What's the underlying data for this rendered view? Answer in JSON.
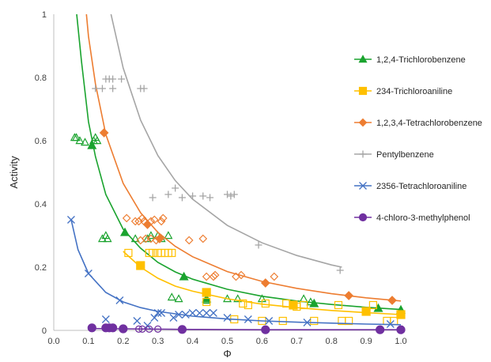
{
  "chart_data": {
    "type": "scatter",
    "title": "",
    "xlabel": "Φ",
    "ylabel": "Activity",
    "xlim": [
      0,
      1
    ],
    "ylim": [
      0,
      1
    ],
    "xticks": [
      "0.0",
      "0.1",
      "0.2",
      "0.3",
      "0.4",
      "0.5",
      "0.6",
      "0.7",
      "0.8",
      "0.9",
      "1.0"
    ],
    "yticks": [
      "0",
      "0.2",
      "0.4",
      "0.6",
      "0.8",
      "1"
    ],
    "grid": false,
    "legend_position": "right",
    "series": [
      {
        "name": "1,2,4-Trichlorobenzene",
        "color": "#1aa32e",
        "marker": "triangle",
        "filled_points": [
          [
            0.11,
            0.585
          ],
          [
            0.205,
            0.31
          ],
          [
            0.375,
            0.17
          ],
          [
            0.44,
            0.1
          ],
          [
            0.75,
            0.085
          ],
          [
            0.935,
            0.07
          ],
          [
            1.0,
            0.065
          ]
        ],
        "open_points": [
          [
            0.06,
            0.61
          ],
          [
            0.065,
            0.61
          ],
          [
            0.075,
            0.6
          ],
          [
            0.09,
            0.595
          ],
          [
            0.115,
            0.6
          ],
          [
            0.12,
            0.61
          ],
          [
            0.125,
            0.6
          ],
          [
            0.14,
            0.29
          ],
          [
            0.15,
            0.3
          ],
          [
            0.155,
            0.29
          ],
          [
            0.235,
            0.29
          ],
          [
            0.27,
            0.29
          ],
          [
            0.28,
            0.3
          ],
          [
            0.3,
            0.3
          ],
          [
            0.31,
            0.29
          ],
          [
            0.33,
            0.3
          ],
          [
            0.34,
            0.105
          ],
          [
            0.36,
            0.1
          ],
          [
            0.44,
            0.095
          ],
          [
            0.5,
            0.1
          ],
          [
            0.53,
            0.1
          ],
          [
            0.6,
            0.1
          ],
          [
            0.72,
            0.1
          ],
          [
            0.74,
            0.09
          ]
        ],
        "curve": [
          [
            0.066,
            1.0
          ],
          [
            0.08,
            0.85
          ],
          [
            0.1,
            0.66
          ],
          [
            0.12,
            0.55
          ],
          [
            0.15,
            0.43
          ],
          [
            0.2,
            0.32
          ],
          [
            0.25,
            0.26
          ],
          [
            0.3,
            0.215
          ],
          [
            0.35,
            0.185
          ],
          [
            0.4,
            0.162
          ],
          [
            0.5,
            0.13
          ],
          [
            0.6,
            0.108
          ],
          [
            0.7,
            0.093
          ],
          [
            0.8,
            0.082
          ],
          [
            0.9,
            0.073
          ],
          [
            1.0,
            0.066
          ]
        ]
      },
      {
        "name": "234-Trichloroaniline",
        "color": "#ffc000",
        "marker": "square",
        "filled_points": [
          [
            0.25,
            0.205
          ],
          [
            0.44,
            0.12
          ],
          [
            0.69,
            0.08
          ],
          [
            0.9,
            0.06
          ],
          [
            1.0,
            0.05
          ]
        ],
        "open_points": [
          [
            0.215,
            0.245
          ],
          [
            0.275,
            0.245
          ],
          [
            0.285,
            0.245
          ],
          [
            0.3,
            0.245
          ],
          [
            0.31,
            0.245
          ],
          [
            0.32,
            0.245
          ],
          [
            0.33,
            0.245
          ],
          [
            0.34,
            0.245
          ],
          [
            0.44,
            0.09
          ],
          [
            0.545,
            0.085
          ],
          [
            0.56,
            0.08
          ],
          [
            0.61,
            0.085
          ],
          [
            0.67,
            0.085
          ],
          [
            0.7,
            0.075
          ],
          [
            0.72,
            0.08
          ],
          [
            0.82,
            0.08
          ],
          [
            0.92,
            0.08
          ],
          [
            0.52,
            0.035
          ],
          [
            0.6,
            0.03
          ],
          [
            0.66,
            0.03
          ],
          [
            0.75,
            0.03
          ],
          [
            0.83,
            0.03
          ],
          [
            0.85,
            0.03
          ],
          [
            0.96,
            0.03
          ],
          [
            0.98,
            0.03
          ]
        ],
        "curve": [
          [
            0.2,
            0.25
          ],
          [
            0.25,
            0.2
          ],
          [
            0.3,
            0.165
          ],
          [
            0.35,
            0.14
          ],
          [
            0.4,
            0.124
          ],
          [
            0.5,
            0.1
          ],
          [
            0.6,
            0.083
          ],
          [
            0.7,
            0.072
          ],
          [
            0.8,
            0.063
          ],
          [
            0.9,
            0.056
          ],
          [
            1.0,
            0.05
          ]
        ]
      },
      {
        "name": "1,2,3,4-Tetrachlorobenzene",
        "color": "#ed7d31",
        "marker": "diamond",
        "filled_points": [
          [
            0.145,
            0.625
          ],
          [
            0.27,
            0.335
          ],
          [
            0.305,
            0.29
          ],
          [
            0.61,
            0.15
          ],
          [
            0.85,
            0.11
          ],
          [
            0.975,
            0.095
          ]
        ],
        "open_points": [
          [
            0.21,
            0.355
          ],
          [
            0.235,
            0.345
          ],
          [
            0.245,
            0.345
          ],
          [
            0.255,
            0.355
          ],
          [
            0.26,
            0.345
          ],
          [
            0.28,
            0.345
          ],
          [
            0.29,
            0.35
          ],
          [
            0.31,
            0.345
          ],
          [
            0.315,
            0.355
          ],
          [
            0.25,
            0.285
          ],
          [
            0.265,
            0.29
          ],
          [
            0.28,
            0.29
          ],
          [
            0.295,
            0.285
          ],
          [
            0.39,
            0.285
          ],
          [
            0.43,
            0.29
          ],
          [
            0.44,
            0.17
          ],
          [
            0.46,
            0.17
          ],
          [
            0.465,
            0.175
          ],
          [
            0.525,
            0.17
          ],
          [
            0.54,
            0.175
          ],
          [
            0.635,
            0.17
          ]
        ],
        "curve": [
          [
            0.094,
            1.0
          ],
          [
            0.1,
            0.93
          ],
          [
            0.12,
            0.78
          ],
          [
            0.15,
            0.62
          ],
          [
            0.2,
            0.465
          ],
          [
            0.25,
            0.372
          ],
          [
            0.3,
            0.31
          ],
          [
            0.35,
            0.266
          ],
          [
            0.4,
            0.233
          ],
          [
            0.5,
            0.186
          ],
          [
            0.6,
            0.155
          ],
          [
            0.7,
            0.133
          ],
          [
            0.8,
            0.116
          ],
          [
            0.9,
            0.103
          ],
          [
            1.0,
            0.093
          ]
        ]
      },
      {
        "name": "Pentylbenzene",
        "color": "#a5a5a5",
        "marker": "plus",
        "filled_points": [],
        "open_points": [
          [
            0.12,
            0.765
          ],
          [
            0.14,
            0.765
          ],
          [
            0.17,
            0.765
          ],
          [
            0.15,
            0.795
          ],
          [
            0.16,
            0.795
          ],
          [
            0.17,
            0.795
          ],
          [
            0.195,
            0.795
          ],
          [
            0.25,
            0.765
          ],
          [
            0.26,
            0.765
          ],
          [
            0.285,
            0.42
          ],
          [
            0.33,
            0.43
          ],
          [
            0.35,
            0.45
          ],
          [
            0.37,
            0.42
          ],
          [
            0.4,
            0.425
          ],
          [
            0.43,
            0.425
          ],
          [
            0.45,
            0.42
          ],
          [
            0.5,
            0.43
          ],
          [
            0.51,
            0.425
          ],
          [
            0.52,
            0.43
          ],
          [
            0.59,
            0.27
          ],
          [
            0.825,
            0.19
          ]
        ],
        "curve": [
          [
            0.165,
            1.0
          ],
          [
            0.2,
            0.83
          ],
          [
            0.25,
            0.665
          ],
          [
            0.3,
            0.553
          ],
          [
            0.35,
            0.474
          ],
          [
            0.4,
            0.415
          ],
          [
            0.5,
            0.332
          ],
          [
            0.6,
            0.277
          ],
          [
            0.7,
            0.237
          ],
          [
            0.8,
            0.207
          ],
          [
            0.83,
            0.2
          ]
        ]
      },
      {
        "name": "2356-Tetrachloroaniline",
        "color": "#4472c4",
        "marker": "x",
        "filled_points": [],
        "open_points": [
          [
            0.05,
            0.35
          ],
          [
            0.1,
            0.18
          ],
          [
            0.19,
            0.095
          ],
          [
            0.15,
            0.035
          ],
          [
            0.24,
            0.03
          ],
          [
            0.27,
            0.015
          ],
          [
            0.29,
            0.04
          ],
          [
            0.3,
            0.055
          ],
          [
            0.31,
            0.055
          ],
          [
            0.345,
            0.04
          ],
          [
            0.36,
            0.05
          ],
          [
            0.38,
            0.05
          ],
          [
            0.4,
            0.055
          ],
          [
            0.42,
            0.055
          ],
          [
            0.44,
            0.055
          ],
          [
            0.46,
            0.055
          ],
          [
            0.5,
            0.04
          ],
          [
            0.56,
            0.035
          ],
          [
            0.62,
            0.03
          ],
          [
            0.73,
            0.025
          ],
          [
            0.97,
            0.02
          ]
        ],
        "curve": [
          [
            0.05,
            0.35
          ],
          [
            0.07,
            0.255
          ],
          [
            0.1,
            0.18
          ],
          [
            0.15,
            0.12
          ],
          [
            0.2,
            0.09
          ],
          [
            0.25,
            0.072
          ],
          [
            0.3,
            0.06
          ],
          [
            0.4,
            0.045
          ],
          [
            0.5,
            0.036
          ],
          [
            0.6,
            0.03
          ],
          [
            0.7,
            0.026
          ],
          [
            0.8,
            0.023
          ],
          [
            0.9,
            0.02
          ],
          [
            1.0,
            0.018
          ]
        ]
      },
      {
        "name": "4-chloro-3-methylphenol",
        "color": "#7030a0",
        "marker": "circle",
        "filled_points": [
          [
            0.11,
            0.008
          ],
          [
            0.15,
            0.008
          ],
          [
            0.16,
            0.008
          ],
          [
            0.17,
            0.008
          ],
          [
            0.2,
            0.005
          ],
          [
            0.37,
            0.003
          ],
          [
            0.61,
            0.002
          ],
          [
            0.94,
            0.002
          ],
          [
            1.0,
            0.002
          ]
        ],
        "open_points": [
          [
            0.245,
            0.004
          ],
          [
            0.255,
            0.004
          ],
          [
            0.275,
            0.004
          ],
          [
            0.3,
            0.004
          ]
        ],
        "curve": [
          [
            0.1,
            0.006
          ],
          [
            0.2,
            0.005
          ],
          [
            0.4,
            0.003
          ],
          [
            0.6,
            0.002
          ],
          [
            0.8,
            0.002
          ],
          [
            1.0,
            0.002
          ]
        ]
      }
    ]
  }
}
